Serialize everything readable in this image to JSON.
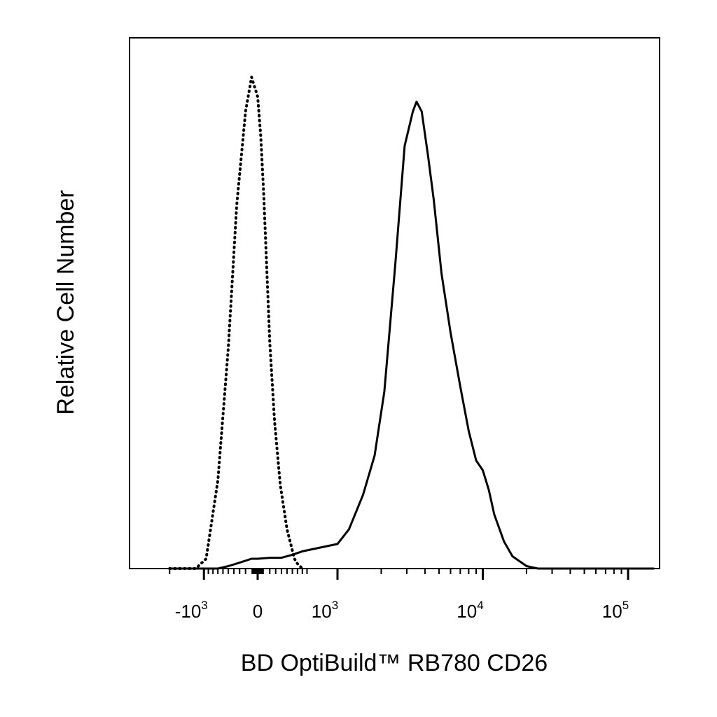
{
  "chart_data": {
    "type": "line",
    "title": "",
    "xlabel": "BD OptiBuild™ RB780 CD26",
    "ylabel": "Relative Cell Number",
    "x_scale": "biexponential",
    "xlim": [
      -2000,
      150000
    ],
    "ylim": [
      0,
      1.08
    ],
    "grid": false,
    "legend": "none",
    "x_tick_labels": [
      {
        "value": -1000,
        "base": "-10",
        "exp": "3"
      },
      {
        "value": 0,
        "base": "0",
        "exp": ""
      },
      {
        "value": 1000,
        "base": "10",
        "exp": "3"
      },
      {
        "value": 10000,
        "base": "10",
        "exp": "4"
      },
      {
        "value": 100000,
        "base": "10",
        "exp": "5"
      }
    ],
    "series": [
      {
        "style": "dotted",
        "x": [
          -2000,
          -1200,
          -950,
          -700,
          -500,
          -350,
          -200,
          -100,
          0,
          50,
          100,
          150,
          200,
          280,
          380,
          500,
          640,
          700,
          800
        ],
        "y": [
          0,
          0,
          0.02,
          0.18,
          0.45,
          0.74,
          0.93,
          1.0,
          0.96,
          0.88,
          0.76,
          0.61,
          0.46,
          0.3,
          0.17,
          0.08,
          0.02,
          0.01,
          0
        ]
      },
      {
        "style": "solid",
        "x": [
          -2000,
          -700,
          -500,
          -300,
          -100,
          0,
          200,
          400,
          600,
          800,
          1000,
          1200,
          1500,
          1800,
          2100,
          2500,
          2900,
          3300,
          3500,
          3800,
          4200,
          4600,
          5200,
          6000,
          7000,
          8000,
          9000,
          10000,
          11000,
          12000,
          14000,
          16000,
          20000,
          24000,
          30000,
          150000
        ],
        "y": [
          0,
          0,
          0.005,
          0.012,
          0.02,
          0.02,
          0.022,
          0.022,
          0.028,
          0.035,
          0.05,
          0.08,
          0.15,
          0.23,
          0.36,
          0.62,
          0.86,
          0.93,
          0.95,
          0.93,
          0.84,
          0.75,
          0.6,
          0.48,
          0.37,
          0.28,
          0.22,
          0.2,
          0.16,
          0.11,
          0.055,
          0.025,
          0.005,
          0,
          0,
          0
        ]
      }
    ]
  }
}
